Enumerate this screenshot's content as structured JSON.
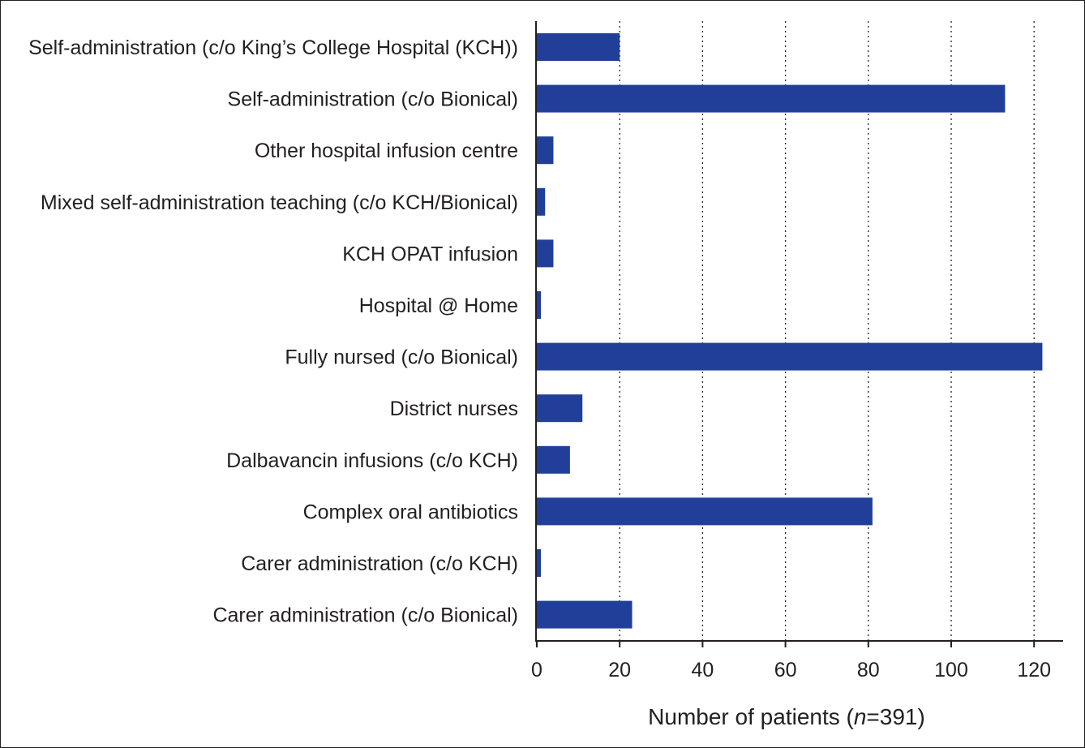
{
  "chart_data": {
    "type": "bar",
    "orientation": "horizontal",
    "categories": [
      "Self-administration (c/o King’s College Hospital (KCH))",
      "Self-administration (c/o Bionical)",
      "Other hospital infusion centre",
      "Mixed self-administration teaching (c/o KCH/Bionical)",
      "KCH OPAT infusion",
      "Hospital @ Home",
      "Fully nursed (c/o Bionical)",
      "District nurses",
      "Dalbavancin infusions (c/o KCH)",
      "Complex oral antibiotics",
      "Carer administration (c/o KCH)",
      "Carer administration (c/o Bionical)"
    ],
    "values": [
      20,
      113,
      4,
      2,
      4,
      1,
      122,
      11,
      8,
      81,
      1,
      23
    ],
    "xlabel_prefix": "Number of patients (",
    "xlabel_italic": "n",
    "xlabel_suffix": "=391)",
    "xlim": [
      0,
      127
    ],
    "xticks": [
      0,
      20,
      40,
      60,
      80,
      100,
      120
    ],
    "grid": "vertical dotted",
    "bar_color": "#213f99"
  }
}
